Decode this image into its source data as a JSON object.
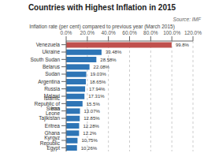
{
  "chart_data": {
    "type": "bar",
    "orientation": "horizontal",
    "title": "Countries with Highest Inflation in 2015",
    "x_label": "Inflation rate (per cent) compared to previous year (March 2015)",
    "source": "Source: IMF",
    "categories": [
      "Venezuela",
      "Ukraine",
      "South Sudan",
      "Belarus",
      "Sudan",
      "Argentina",
      "Russia",
      "Malawi",
      "Islamic Republic of Iran",
      "Sierra Leone",
      "Tajikistan",
      "Eritrea",
      "Ghana",
      "Kyrgyz Republic",
      "Egypt"
    ],
    "values": [
      99.8,
      33.48,
      28.58,
      22.08,
      19.03,
      18.65,
      17.94,
      17.31,
      15.5,
      13.07,
      12.85,
      12.28,
      12.2,
      10.75,
      10.26
    ],
    "value_labels": [
      "99.8%",
      "33.48%",
      "28.58%",
      "22.08%",
      "19.03%",
      "18.65%",
      "17.94%",
      "17.31%",
      "15.5%",
      "13.07%",
      "12.85%",
      "12.28%",
      "12.2%",
      "10.75%",
      "10.26%"
    ],
    "data_labels": true,
    "colors": [
      "#c0504d",
      "#2e75b6",
      "#2e75b6",
      "#2e75b6",
      "#2e75b6",
      "#2e75b6",
      "#2e75b6",
      "#2e75b6",
      "#2e75b6",
      "#2e75b6",
      "#2e75b6",
      "#2e75b6",
      "#2e75b6",
      "#2e75b6",
      "#2e75b6"
    ],
    "xlim": [
      0,
      120
    ],
    "xticks": [
      {
        "value": 0,
        "label": "0.0%"
      },
      {
        "value": 20,
        "label": "20.0%"
      },
      {
        "value": 40,
        "label": "40.0%"
      },
      {
        "value": 60,
        "label": "60.0%"
      },
      {
        "value": 80,
        "label": "80.0%"
      },
      {
        "value": 100,
        "label": "100.0%"
      },
      {
        "value": 120,
        "label": "120.0%"
      }
    ],
    "grid": true
  }
}
